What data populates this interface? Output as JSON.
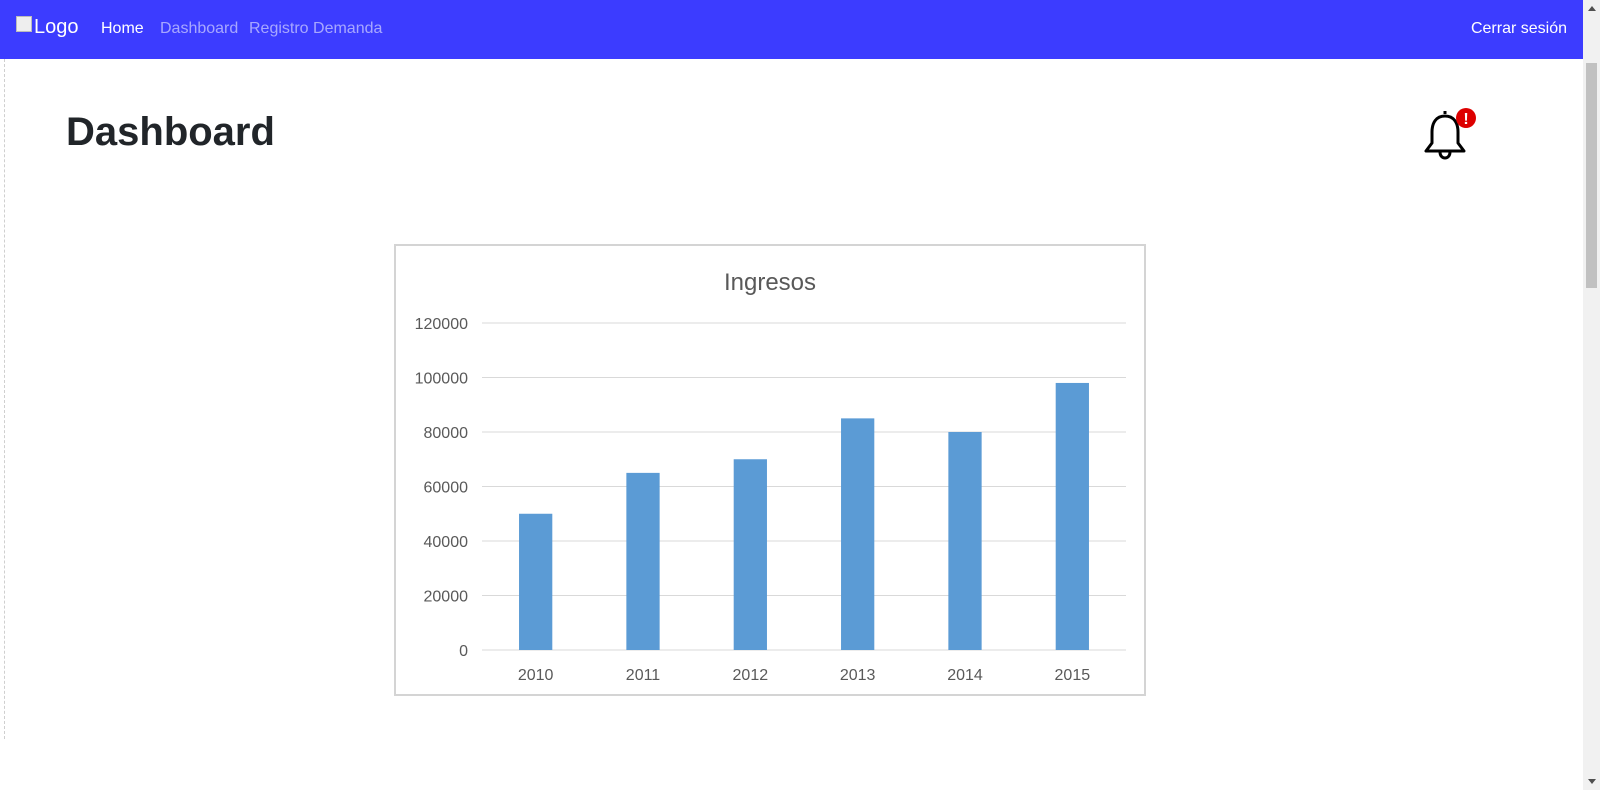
{
  "navbar": {
    "logo_alt": "Logo",
    "links": [
      {
        "label": "Home",
        "active": true
      },
      {
        "label": "Dashboard",
        "active": false
      },
      {
        "label": "Registro Demanda",
        "active": false
      }
    ],
    "logout_label": "Cerrar sesión",
    "background_color": "#3c3cff"
  },
  "page": {
    "title": "Dashboard",
    "notification_icon": "bell-icon",
    "notification_badge": "!",
    "badge_color": "#dd0000"
  },
  "chart_data": {
    "type": "bar",
    "title": "Ingresos",
    "categories": [
      "2010",
      "2011",
      "2012",
      "2013",
      "2014",
      "2015"
    ],
    "values": [
      50000,
      65000,
      70000,
      85000,
      80000,
      98000
    ],
    "ylim": [
      0,
      120000
    ],
    "yticks": [
      0,
      20000,
      40000,
      60000,
      80000,
      100000,
      120000
    ],
    "grid": true,
    "bar_color": "#5b9bd5"
  }
}
